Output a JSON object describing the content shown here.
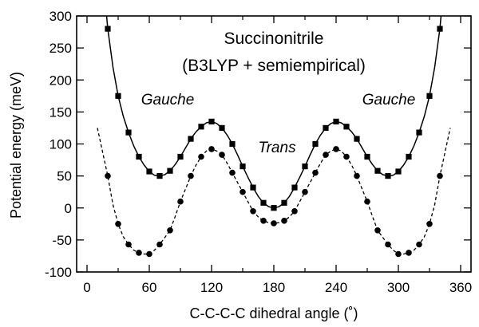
{
  "chart_data": {
    "type": "line",
    "title": "Succinonitrile",
    "subtitle": "(B3LYP + semiempirical)",
    "xlabel": "C-C-C-C dihedral angle (˚)",
    "ylabel": "Potential energy (meV)",
    "xlim": [
      -10,
      370
    ],
    "ylim": [
      -100,
      300
    ],
    "x_ticks": [
      0,
      60,
      120,
      180,
      240,
      300,
      360
    ],
    "x_tick_labels": [
      "0",
      "60",
      "120",
      "180",
      "240",
      "300",
      "360"
    ],
    "y_ticks": [
      -100,
      -50,
      0,
      50,
      100,
      150,
      200,
      250,
      300
    ],
    "y_tick_labels": [
      "-100",
      "-50",
      "0",
      "50",
      "100",
      "150",
      "200",
      "250",
      "300"
    ],
    "grid": false,
    "legend": "none",
    "annotations": [
      {
        "text": "Gauche",
        "x": 45,
        "y": 133
      },
      {
        "text": "Gauche",
        "x": 315,
        "y": 133
      },
      {
        "text": "Trans",
        "x": 180,
        "y": 75
      }
    ],
    "series": [
      {
        "marker": "square",
        "line": "solid",
        "color": "#000000",
        "x": [
          20,
          30,
          40,
          50,
          60,
          70,
          80,
          90,
          100,
          110,
          120,
          130,
          140,
          150,
          160,
          170,
          180,
          190,
          200,
          210,
          220,
          230,
          240,
          250,
          260,
          270,
          280,
          290,
          300,
          310,
          320,
          330,
          340
        ],
        "values": [
          280,
          175,
          118,
          80,
          57,
          50,
          58,
          80,
          108,
          127,
          135,
          125,
          100,
          65,
          32,
          8,
          0,
          8,
          32,
          65,
          100,
          125,
          135,
          127,
          108,
          80,
          58,
          50,
          57,
          80,
          118,
          175,
          280
        ]
      },
      {
        "marker": "circle",
        "line": "dashed",
        "color": "#000000",
        "x": [
          20,
          30,
          40,
          50,
          60,
          70,
          80,
          90,
          100,
          110,
          120,
          130,
          140,
          150,
          160,
          170,
          180,
          190,
          200,
          210,
          220,
          230,
          240,
          250,
          260,
          270,
          280,
          290,
          300,
          310,
          320,
          330,
          340
        ],
        "values": [
          50,
          -25,
          -57,
          -70,
          -72,
          -57,
          -35,
          10,
          50,
          80,
          92,
          83,
          55,
          25,
          -5,
          -20,
          -24,
          -20,
          -5,
          25,
          55,
          83,
          92,
          80,
          50,
          10,
          -35,
          -57,
          -72,
          -70,
          -57,
          -25,
          50
        ]
      }
    ],
    "fit_curves": [
      {
        "style": "solid",
        "x": [
          10,
          20,
          25,
          30,
          35,
          40,
          45,
          50,
          55,
          60,
          65,
          70,
          75,
          80,
          85,
          90,
          95,
          100,
          105,
          110,
          115,
          120,
          125,
          130,
          135,
          140,
          145,
          150,
          155,
          160,
          165,
          170,
          175,
          180,
          185,
          190,
          195,
          200,
          205,
          210,
          215,
          220,
          225,
          230,
          235,
          240,
          245,
          250,
          255,
          260,
          265,
          270,
          275,
          280,
          285,
          290,
          295,
          300,
          305,
          310,
          315,
          320,
          325,
          330,
          335,
          340,
          350
        ],
        "values": [
          460,
          280,
          220,
          175,
          143,
          118,
          97,
          80,
          67,
          57,
          51,
          50,
          52,
          58,
          68,
          80,
          94,
          108,
          119,
          127,
          133,
          135,
          132,
          125,
          114,
          100,
          83,
          65,
          48,
          32,
          18,
          8,
          2,
          0,
          2,
          8,
          18,
          32,
          48,
          65,
          83,
          100,
          114,
          125,
          132,
          135,
          133,
          127,
          119,
          108,
          94,
          80,
          68,
          58,
          52,
          50,
          51,
          57,
          67,
          80,
          97,
          118,
          143,
          175,
          220,
          280,
          460
        ]
      },
      {
        "style": "dashed",
        "x": [
          10,
          20,
          25,
          30,
          35,
          40,
          45,
          50,
          55,
          60,
          65,
          70,
          75,
          80,
          85,
          90,
          95,
          100,
          105,
          110,
          115,
          120,
          125,
          130,
          135,
          140,
          145,
          150,
          155,
          160,
          165,
          170,
          175,
          180,
          185,
          190,
          195,
          200,
          205,
          210,
          215,
          220,
          225,
          230,
          235,
          240,
          245,
          250,
          255,
          260,
          265,
          270,
          275,
          280,
          285,
          290,
          295,
          300,
          305,
          310,
          315,
          320,
          325,
          330,
          335,
          340,
          350
        ],
        "values": [
          125,
          50,
          5,
          -25,
          -45,
          -57,
          -66,
          -70,
          -72,
          -72,
          -66,
          -57,
          -46,
          -35,
          -13,
          10,
          30,
          50,
          67,
          80,
          89,
          92,
          89,
          83,
          70,
          55,
          40,
          25,
          10,
          -5,
          -14,
          -20,
          -23,
          -24,
          -23,
          -20,
          -14,
          -5,
          10,
          25,
          40,
          55,
          70,
          83,
          89,
          92,
          89,
          80,
          67,
          50,
          30,
          10,
          -13,
          -35,
          -46,
          -57,
          -66,
          -72,
          -72,
          -70,
          -66,
          -57,
          -45,
          -25,
          5,
          50,
          125
        ]
      }
    ]
  }
}
